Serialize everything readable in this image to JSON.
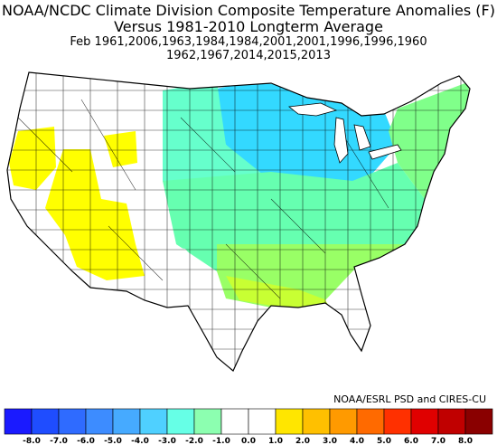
{
  "header": {
    "title_line1": "NOAA/NCDC Climate Division Composite Temperature Anomalies (F)",
    "title_line2": "Versus 1981-2010 Longterm Average",
    "years_line1": "Feb  1961,2006,1963,1984,1984,2001,2001,1996,1996,1960",
    "years_line2": "1962,1967,2014,2015,2013"
  },
  "credit": "NOAA/ESRL PSD and CIRES-CU",
  "colorbar": {
    "ticks": [
      "-8.0",
      "-7.0",
      "-6.0",
      "-5.0",
      "-4.0",
      "-3.0",
      "-2.0",
      "-1.0",
      "0.0",
      "1.0",
      "2.0",
      "3.0",
      "4.0",
      "5.0",
      "6.0",
      "7.0",
      "8.0"
    ],
    "colors": [
      "#1a1aff",
      "#1f4dff",
      "#2f6bff",
      "#3d8cff",
      "#46aaff",
      "#4fd0ff",
      "#66ffe6",
      "#8cffb0",
      "#ffffff",
      "#ffffff",
      "#ffe600",
      "#ffc000",
      "#ff9a00",
      "#ff6a00",
      "#ff3000",
      "#e00000",
      "#c00000",
      "#8a0000"
    ]
  },
  "map_legend_colors": {
    "cold": "#33d9ff",
    "cool": "#66ffcc",
    "mild": "#99ff66",
    "slight": "#c8ff33",
    "warm": "#ffff00",
    "none": "#ffffff"
  }
}
